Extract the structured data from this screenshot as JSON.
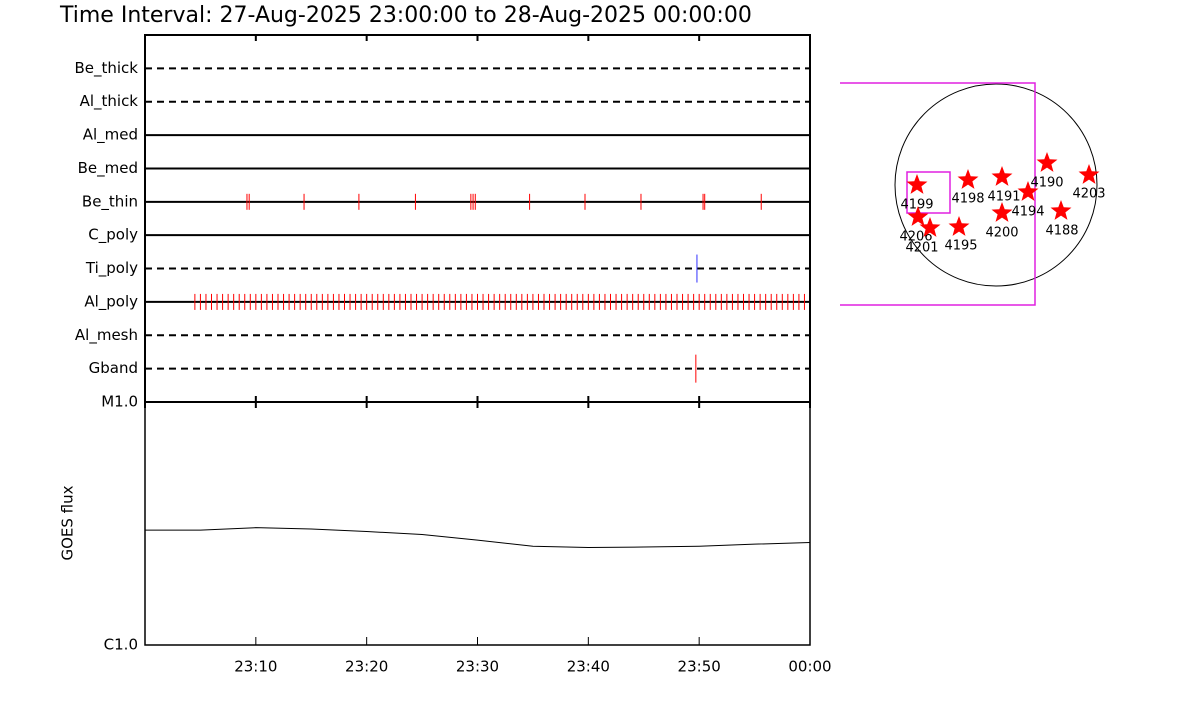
{
  "chart_data": [
    {
      "type": "event",
      "title": "Time Interval: 27-Aug-2025 23:00:00 to 28-Aug-2025 00:00:00",
      "categories": [
        "Be_thick",
        "Al_thick",
        "Al_med",
        "Be_med",
        "Be_thin",
        "C_poly",
        "Ti_poly",
        "Al_poly",
        "Al_mesh",
        "Gband"
      ],
      "line_styles": [
        "dashed",
        "dashed",
        "solid",
        "solid",
        "solid",
        "solid",
        "dashed",
        "solid",
        "dashed",
        "dashed"
      ],
      "series": [
        {
          "color": "#ff0000",
          "x": []
        },
        {
          "color": "#ff0000",
          "x": []
        },
        {
          "color": "#ff0000",
          "x": []
        },
        {
          "color": "#ff0000",
          "x": []
        },
        {
          "color": "#ff0000",
          "x": [
            9.2,
            9.4,
            14.35,
            19.3,
            24.4,
            29.4,
            29.6,
            29.8,
            34.7,
            39.7,
            44.75,
            50.35,
            50.5,
            55.6
          ]
        },
        {
          "color": "#ff0000",
          "x": []
        },
        {
          "color": "#3030ff",
          "x": [
            49.8
          ]
        },
        {
          "color": "#ff0000",
          "x": [
            4.5,
            5,
            5.5,
            6,
            6.5,
            7,
            7.5,
            8,
            8.5,
            9,
            9.5,
            10,
            10.5,
            11,
            11.5,
            12,
            12.5,
            13,
            13.5,
            14,
            14.5,
            15,
            15.5,
            16,
            16.5,
            17,
            17.5,
            18,
            18.5,
            19,
            19.5,
            20,
            20.5,
            21,
            21.5,
            22,
            22.5,
            23,
            23.5,
            24,
            24.5,
            25,
            25.5,
            26,
            26.5,
            27,
            27.5,
            28,
            28.5,
            29,
            29.5,
            30,
            30.5,
            31,
            31.5,
            32,
            32.5,
            33,
            33.5,
            34,
            34.5,
            35,
            35.5,
            36,
            36.5,
            37,
            37.5,
            38,
            38.5,
            39,
            39.5,
            40,
            40.5,
            41,
            41.5,
            42,
            42.5,
            43,
            43.5,
            44,
            44.5,
            45,
            45.5,
            46,
            46.5,
            47,
            47.5,
            48,
            48.5,
            49,
            49.5,
            50,
            50.5,
            51,
            51.5,
            52,
            52.5,
            53,
            53.5,
            54,
            54.5,
            55,
            55.5,
            56,
            56.5,
            57,
            57.5,
            58,
            58.5,
            59,
            59.5
          ]
        },
        {
          "color": "#ff0000",
          "x": []
        },
        {
          "color": "#ff0000",
          "x": [
            49.7
          ]
        }
      ],
      "xlim": [
        0,
        60
      ],
      "xticks": [
        0,
        10,
        20,
        30,
        40,
        50,
        60
      ]
    },
    {
      "type": "line",
      "ylabel": "GOES flux",
      "color": "#000000",
      "x": [
        0,
        5,
        10,
        15,
        20,
        25,
        30,
        35,
        40,
        45,
        50,
        55,
        60
      ],
      "values": [
        2.97e-06,
        2.97e-06,
        3.04e-06,
        3e-06,
        2.93e-06,
        2.85e-06,
        2.7e-06,
        2.55e-06,
        2.52e-06,
        2.53e-06,
        2.55e-06,
        2.6e-06,
        2.64e-06
      ],
      "log_scale": true,
      "ylim": [
        1e-06,
        1e-05
      ],
      "yticks": [
        {
          "value": 1e-05,
          "label": "M1.0"
        },
        {
          "value": 1e-06,
          "label": "C1.0"
        }
      ],
      "xlim": [
        0,
        60
      ],
      "xticks": [
        {
          "value": 10,
          "label": "23:10"
        },
        {
          "value": 20,
          "label": "23:20"
        },
        {
          "value": 30,
          "label": "23:30"
        },
        {
          "value": 40,
          "label": "23:40"
        },
        {
          "value": 50,
          "label": "23:50"
        },
        {
          "value": 60,
          "label": "00:00"
        }
      ]
    },
    {
      "type": "map",
      "color": "#ff0000",
      "labels": [
        "4199",
        "4198",
        "4191",
        "4190",
        "4203",
        "4194",
        "4188",
        "4200",
        "4206",
        "4201",
        "4195"
      ]
    }
  ]
}
